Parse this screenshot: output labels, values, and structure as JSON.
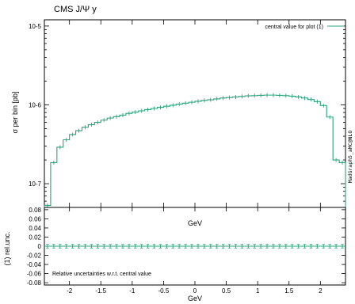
{
  "chart_data": [
    {
      "type": "line",
      "title": "CMS J/Ψ y",
      "xlabel": "GeV",
      "ylabel": "σ per bin [pb]",
      "yscale": "log",
      "xlim": [
        -2.4,
        2.4
      ],
      "ylim": [
        5e-08,
        1.2e-05
      ],
      "y_tick_labels": [
        "10-7",
        "10-6",
        "10-5"
      ],
      "legend": {
        "label": "central value for plot (1)",
        "placement": "top-right"
      },
      "side_text": "MadGraph5_aMC@NLO",
      "colors": {
        "series": "#2aa57a",
        "axes": "#000000"
      },
      "series": [
        {
          "name": "central value for plot (1)",
          "style": "histogram-step",
          "bin_edges": [
            -2.4,
            -2.3,
            -2.2,
            -2.1,
            -2.0,
            -1.9,
            -1.8,
            -1.7,
            -1.6,
            -1.5,
            -1.4,
            -1.3,
            -1.2,
            -1.1,
            -1.0,
            -0.9,
            -0.8,
            -0.7,
            -0.6,
            -0.5,
            -0.4,
            -0.3,
            -0.2,
            -0.1,
            0.0,
            0.1,
            0.2,
            0.3,
            0.4,
            0.5,
            0.6,
            0.7,
            0.8,
            0.9,
            1.0,
            1.1,
            1.2,
            1.3,
            1.4,
            1.5,
            1.6,
            1.7,
            1.8,
            1.9,
            2.0,
            2.1,
            2.2,
            2.3,
            2.4
          ],
          "values": [
            5.3e-08,
            1.85e-07,
            2.9e-07,
            3.6e-07,
            4.2e-07,
            4.7e-07,
            5.2e-07,
            5.6e-07,
            6e-07,
            6.4e-07,
            6.8e-07,
            7.1e-07,
            7.4e-07,
            7.8e-07,
            8.1e-07,
            8.4e-07,
            8.7e-07,
            9e-07,
            9.3e-07,
            9.6e-07,
            9.9e-07,
            1.02e-06,
            1.05e-06,
            1.08e-06,
            1.11e-06,
            1.14e-06,
            1.16e-06,
            1.19e-06,
            1.22e-06,
            1.24e-06,
            1.26e-06,
            1.28e-06,
            1.3e-06,
            1.31e-06,
            1.32e-06,
            1.33e-06,
            1.33e-06,
            1.32e-06,
            1.31e-06,
            1.29e-06,
            1.26e-06,
            1.22e-06,
            1.17e-06,
            1.1e-06,
            9.8e-07,
            7e-07,
            2e-07,
            1.85e-07
          ]
        }
      ]
    },
    {
      "type": "line",
      "xlabel": "GeV",
      "ylabel": "(1) rel.unc.",
      "xlim": [
        -2.4,
        2.4
      ],
      "ylim": [
        -0.085,
        0.085
      ],
      "x_ticks": [
        -2,
        -1.5,
        -1,
        -0.5,
        0,
        0.5,
        1,
        1.5,
        2
      ],
      "x_tick_labels": [
        "-2",
        "-1.5",
        "-1",
        "-0.5",
        "0",
        "0.5",
        "1",
        "1.5",
        "2"
      ],
      "y_ticks": [
        -0.08,
        -0.06,
        -0.04,
        -0.02,
        0,
        0.02,
        0.04,
        0.06,
        0.08
      ],
      "y_tick_labels": [
        "-0.08",
        "-0.06",
        "-0.04",
        "-0.02",
        "0",
        "0.02",
        "0.04",
        "0.06",
        "0.08"
      ],
      "annotation": "Relative uncertainties w.r.t. central value",
      "series": [
        {
          "style": "errorbar",
          "value": 0,
          "rel_unc": 0.004
        }
      ]
    }
  ]
}
